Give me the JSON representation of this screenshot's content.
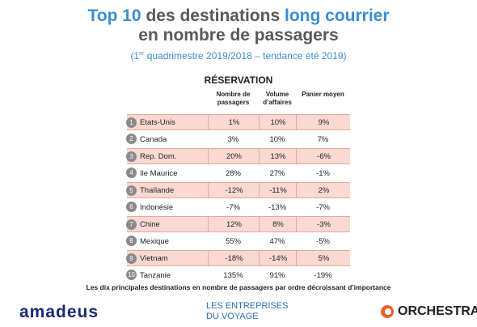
{
  "header": {
    "title_parts": [
      "Top 10",
      "des destinations",
      "long courrier"
    ],
    "title_line2": "en nombre de passagers",
    "subtitle": {
      "before": "(1",
      "sup": "er",
      "after": "quadrimestre 2019/2018 – tendance été 2019)"
    }
  },
  "table": {
    "title": "RÉSERVATION",
    "columns": [
      "Nombre de passagers",
      "Volume d’affaires",
      "Panier moyen"
    ],
    "rows": [
      [
        "1",
        "Etats-Unis",
        "1%",
        "10%",
        "9%"
      ],
      [
        "2",
        "Canada",
        "3%",
        "10%",
        "7%"
      ],
      [
        "3",
        "Rep. Dom.",
        "20%",
        "13%",
        "-6%"
      ],
      [
        "4",
        "Ile Maurice",
        "28%",
        "27%",
        "-1%"
      ],
      [
        "5",
        "Thaïlande",
        "-12%",
        "-11%",
        "2%"
      ],
      [
        "6",
        "Indonésie",
        "-7%",
        "-13%",
        "-7%"
      ],
      [
        "7",
        "Chine",
        "12%",
        "8%",
        "-3%"
      ],
      [
        "8",
        "Mexique",
        "55%",
        "47%",
        "-5%"
      ],
      [
        "9",
        "Vietnam",
        "-18%",
        "-14%",
        "5%"
      ],
      [
        "10",
        "Tanzanie",
        "135%",
        "91%",
        "-19%"
      ]
    ]
  },
  "caption": "Les dix principales destinations en nombre de passagers par ordre décroissant d’importance",
  "logos": {
    "amadeus": "amadeus",
    "edv_line1": "LES ENTREPRISES",
    "edv_line2": "DU VOYAGE",
    "orchestra": "ORCHESTRA"
  }
}
